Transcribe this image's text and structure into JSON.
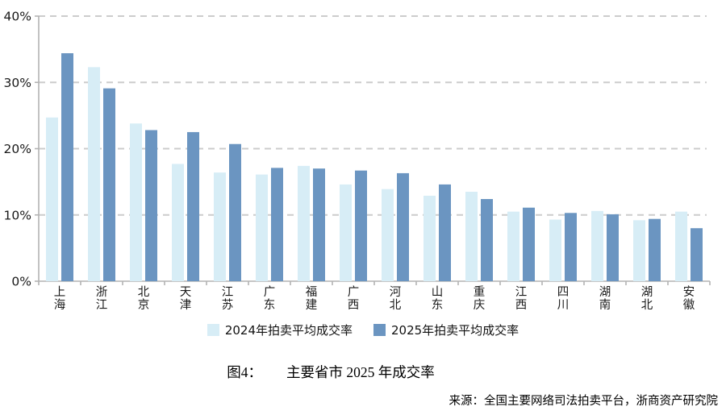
{
  "chart_data": {
    "type": "bar",
    "title": "图4：主要省市 2025 年成交率",
    "categories": [
      "上海",
      "浙江",
      "北京",
      "天津",
      "江苏",
      "广东",
      "福建",
      "广西",
      "河北",
      "山东",
      "重庆",
      "江西",
      "四川",
      "湖南",
      "湖北",
      "安徽"
    ],
    "series": [
      {
        "name": "2024年拍卖平均成交率",
        "color": "#d7edf6",
        "values": [
          24.7,
          32.3,
          23.8,
          17.7,
          16.4,
          16.1,
          17.4,
          14.6,
          13.9,
          12.9,
          13.5,
          10.5,
          9.3,
          10.6,
          9.2,
          10.5
        ]
      },
      {
        "name": "2025年拍卖平均成交率",
        "color": "#6b95c1",
        "values": [
          34.4,
          29.1,
          22.8,
          22.5,
          20.7,
          17.1,
          17.0,
          16.7,
          16.3,
          14.6,
          12.4,
          11.1,
          10.3,
          10.1,
          9.4,
          8.0
        ]
      }
    ],
    "xlabel": "",
    "ylabel": "",
    "ylim": [
      0,
      40
    ],
    "ytick_step": 10,
    "ytick_labels": [
      "0%",
      "10%",
      "20%",
      "30%",
      "40%"
    ],
    "grid": "horizontal-dashed",
    "legend_position": "bottom",
    "axis_color": "#b3b3b3",
    "gridline_color": "#cccccc",
    "tick_label_color": "#1a1a1a"
  },
  "caption": {
    "figure_label": "图4：",
    "title": "主要省市 2025 年成交率"
  },
  "source": {
    "text": "来源：全国主要网络司法拍卖平台，浙商资产研究院"
  }
}
